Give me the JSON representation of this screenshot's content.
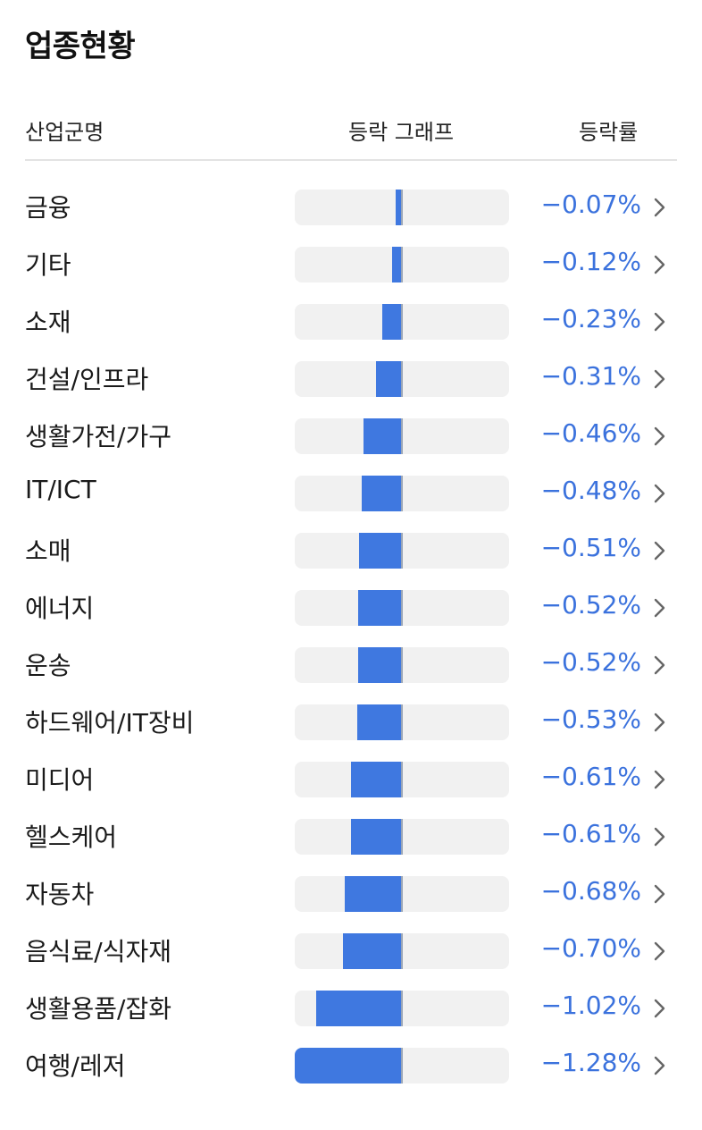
{
  "title": "업종현황",
  "header": {
    "name_label": "산업군명",
    "graph_label": "등락 그래프",
    "rate_label": "등락률"
  },
  "colors": {
    "bar": "#3f78e0",
    "track": "#f1f1f1",
    "rate_text": "#3b72dd"
  },
  "chevron_icon": "chevron-right-icon",
  "max_abs_rate": 1.28,
  "sectors": [
    {
      "name": "금융",
      "rate": "−0.07%",
      "value": -0.07
    },
    {
      "name": "기타",
      "rate": "−0.12%",
      "value": -0.12
    },
    {
      "name": "소재",
      "rate": "−0.23%",
      "value": -0.23
    },
    {
      "name": "건설/인프라",
      "rate": "−0.31%",
      "value": -0.31
    },
    {
      "name": "생활가전/가구",
      "rate": "−0.46%",
      "value": -0.46
    },
    {
      "name": "IT/ICT",
      "rate": "−0.48%",
      "value": -0.48
    },
    {
      "name": "소매",
      "rate": "−0.51%",
      "value": -0.51
    },
    {
      "name": "에너지",
      "rate": "−0.52%",
      "value": -0.52
    },
    {
      "name": "운송",
      "rate": "−0.52%",
      "value": -0.52
    },
    {
      "name": "하드웨어/IT장비",
      "rate": "−0.53%",
      "value": -0.53
    },
    {
      "name": "미디어",
      "rate": "−0.61%",
      "value": -0.61
    },
    {
      "name": "헬스케어",
      "rate": "−0.61%",
      "value": -0.61
    },
    {
      "name": "자동차",
      "rate": "−0.68%",
      "value": -0.68
    },
    {
      "name": "음식료/식자재",
      "rate": "−0.70%",
      "value": -0.7
    },
    {
      "name": "생활용품/잡화",
      "rate": "−1.02%",
      "value": -1.02
    },
    {
      "name": "여행/레저",
      "rate": "−1.28%",
      "value": -1.28
    }
  ]
}
